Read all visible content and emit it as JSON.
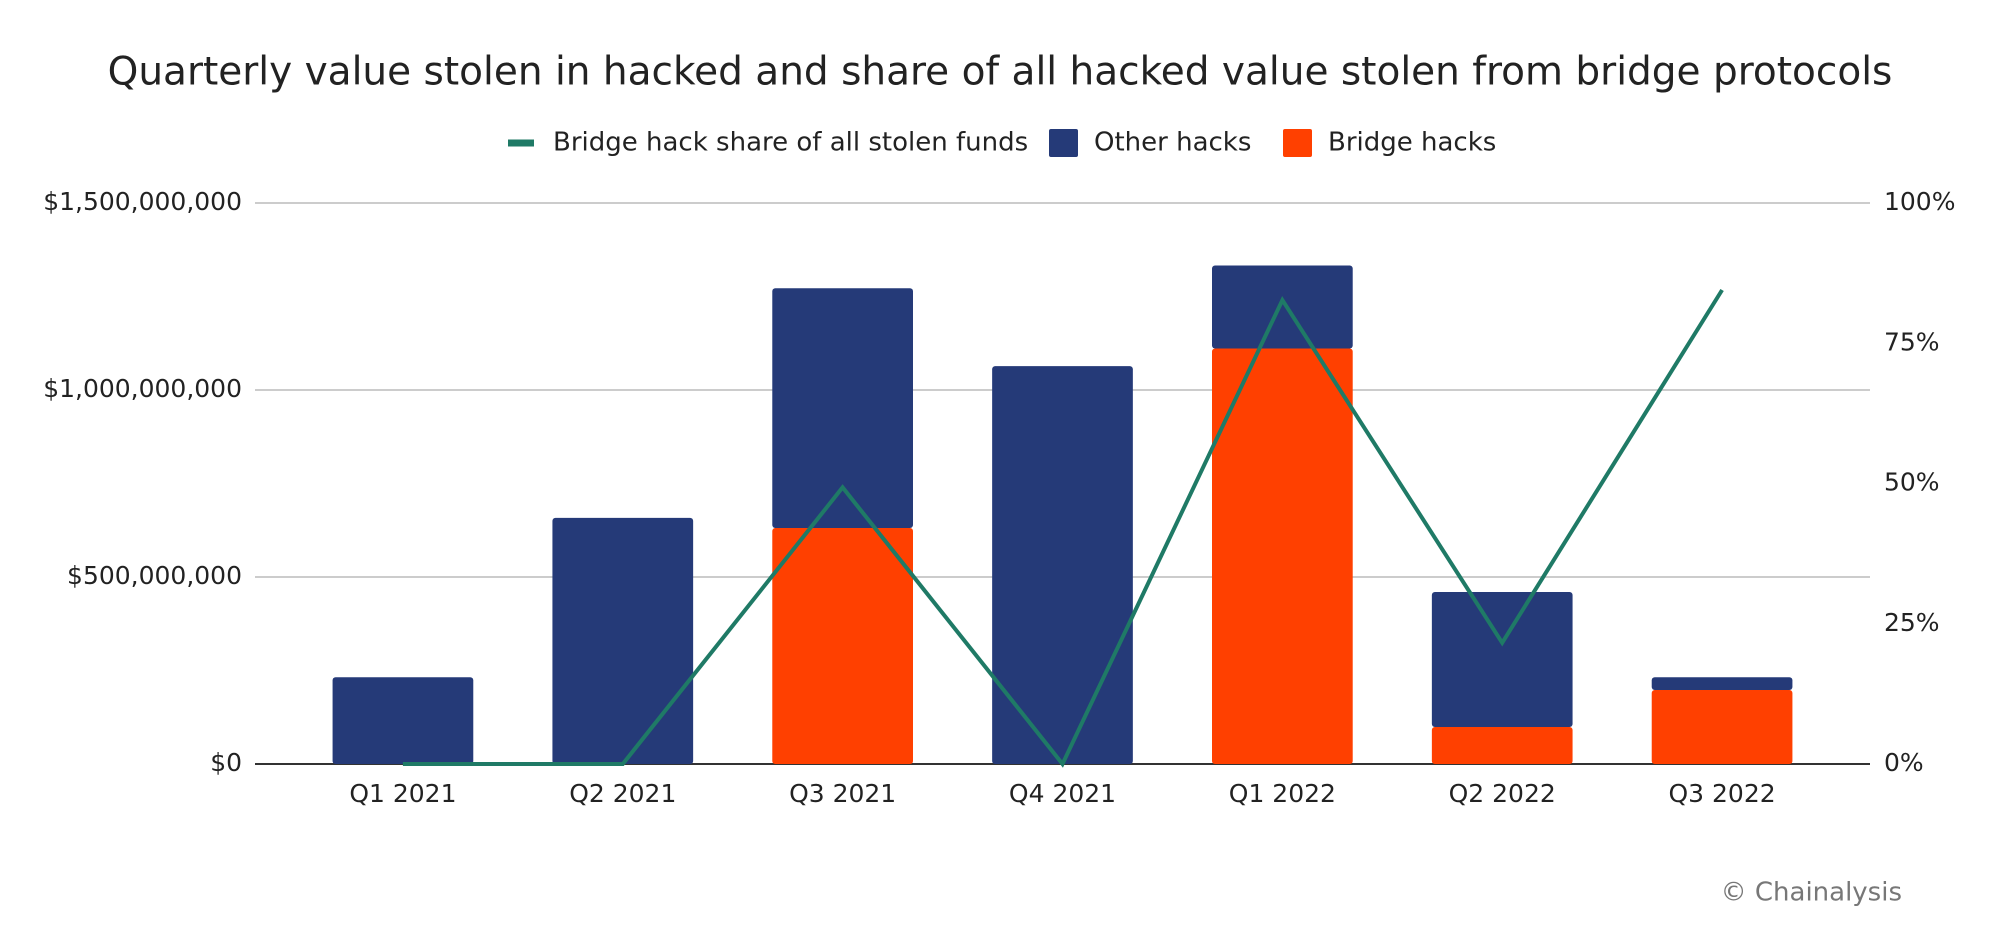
{
  "chart_data": {
    "type": "bar",
    "title": "Quarterly value stolen in hacked and share of all hacked value stolen from bridge protocols",
    "categories": [
      "Q1 2021",
      "Q2 2021",
      "Q3 2021",
      "Q4 2021",
      "Q1 2022",
      "Q2 2022",
      "Q3 2022"
    ],
    "series": [
      {
        "name": "Bridge hack share of all stolen funds",
        "type": "line",
        "axis": "y2",
        "color": "#1f7a66",
        "values": [
          0,
          0,
          49.3,
          0,
          82.7,
          21.6,
          84.5
        ]
      },
      {
        "name": "Other hacks",
        "type": "bar",
        "color": "#253a78",
        "values": [
          232000000,
          658000000,
          641000000,
          1064000000,
          222000000,
          361000000,
          34000000
        ]
      },
      {
        "name": "Bridge hacks",
        "type": "bar",
        "color": "#ff4000",
        "values": [
          0,
          0,
          631000000,
          0,
          1111000000,
          99000000,
          198000000
        ]
      }
    ],
    "stacked": true,
    "ylim": [
      0,
      1500000000
    ],
    "yticks": [
      {
        "value": 0,
        "label": "$0"
      },
      {
        "value": 500000000,
        "label": "$500,000,000"
      },
      {
        "value": 1000000000,
        "label": "$1,000,000,000"
      },
      {
        "value": 1500000000,
        "label": "$1,500,000,000"
      }
    ],
    "y2lim": [
      0,
      100
    ],
    "y2ticks": [
      {
        "value": 0,
        "label": "0%"
      },
      {
        "value": 25,
        "label": "25%"
      },
      {
        "value": 50,
        "label": "50%"
      },
      {
        "value": 75,
        "label": "75%"
      },
      {
        "value": 100,
        "label": "100%"
      }
    ],
    "grid": true,
    "legend": "top",
    "credit": "© Chainalysis"
  }
}
